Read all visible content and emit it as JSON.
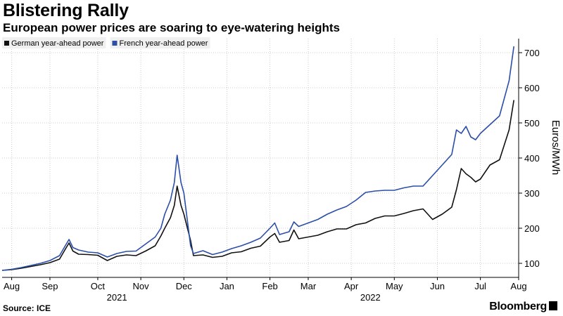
{
  "title": "Blistering Rally",
  "subtitle": "European power prices are soaring to eye-watering heights",
  "source": "Source: ICE",
  "brand": "Bloomberg",
  "colors": {
    "german": "#111111",
    "french": "#2b4ea8",
    "grid": "#cccccc"
  },
  "chart_data": {
    "type": "line",
    "ylabel": "Euros/MWh",
    "ylim": [
      60,
      740
    ],
    "yticks": [
      100,
      200,
      300,
      400,
      500,
      600,
      700
    ],
    "xlim": [
      0,
      54
    ],
    "xticks": [
      {
        "label": "Aug",
        "x": 1
      },
      {
        "label": "Sep",
        "x": 5
      },
      {
        "label": "Oct",
        "x": 10
      },
      {
        "label": "Nov",
        "x": 14.5
      },
      {
        "label": "Dec",
        "x": 19
      },
      {
        "label": "Jan",
        "x": 23.5
      },
      {
        "label": "Feb",
        "x": 28
      },
      {
        "label": "Mar",
        "x": 32
      },
      {
        "label": "Apr",
        "x": 36.5
      },
      {
        "label": "May",
        "x": 41
      },
      {
        "label": "Jun",
        "x": 45.5
      },
      {
        "label": "Jul",
        "x": 50
      },
      {
        "label": "Aug",
        "x": 54
      }
    ],
    "year_labels": [
      {
        "label": "2021",
        "x": 12
      },
      {
        "label": "2022",
        "x": 38.5
      }
    ],
    "legend_placement": "top-left",
    "series": [
      {
        "name": "German year-ahead power",
        "points": [
          [
            0,
            80
          ],
          [
            1,
            82
          ],
          [
            2,
            86
          ],
          [
            3,
            91
          ],
          [
            4,
            96
          ],
          [
            5,
            102
          ],
          [
            6,
            112
          ],
          [
            6.6,
            140
          ],
          [
            7,
            158
          ],
          [
            7.4,
            135
          ],
          [
            8,
            126
          ],
          [
            9,
            125
          ],
          [
            10,
            123
          ],
          [
            11,
            108
          ],
          [
            12,
            120
          ],
          [
            13,
            124
          ],
          [
            14,
            122
          ],
          [
            15,
            135
          ],
          [
            16,
            150
          ],
          [
            16.6,
            178
          ],
          [
            17,
            200
          ],
          [
            17.6,
            230
          ],
          [
            18,
            265
          ],
          [
            18.3,
            320
          ],
          [
            18.7,
            265
          ],
          [
            19,
            240
          ],
          [
            19.7,
            165
          ],
          [
            20,
            122
          ],
          [
            21,
            124
          ],
          [
            22,
            117
          ],
          [
            23,
            120
          ],
          [
            24,
            130
          ],
          [
            25,
            133
          ],
          [
            26,
            143
          ],
          [
            27,
            149
          ],
          [
            28,
            175
          ],
          [
            28.5,
            185
          ],
          [
            29,
            160
          ],
          [
            30,
            165
          ],
          [
            30.5,
            195
          ],
          [
            31,
            170
          ],
          [
            32,
            175
          ],
          [
            33,
            180
          ],
          [
            34,
            190
          ],
          [
            35,
            198
          ],
          [
            36,
            198
          ],
          [
            37,
            210
          ],
          [
            38,
            215
          ],
          [
            39,
            228
          ],
          [
            40,
            235
          ],
          [
            41,
            235
          ],
          [
            42,
            242
          ],
          [
            43,
            250
          ],
          [
            44,
            255
          ],
          [
            45,
            225
          ],
          [
            46,
            240
          ],
          [
            47,
            260
          ],
          [
            47.5,
            310
          ],
          [
            48,
            370
          ],
          [
            48.5,
            355
          ],
          [
            49,
            345
          ],
          [
            49.5,
            332
          ],
          [
            50,
            340
          ],
          [
            51,
            380
          ],
          [
            52,
            395
          ],
          [
            53,
            480
          ],
          [
            53.5,
            565
          ]
        ]
      },
      {
        "name": "French year-ahead power",
        "points": [
          [
            0,
            80
          ],
          [
            1,
            83
          ],
          [
            2,
            88
          ],
          [
            3,
            94
          ],
          [
            4,
            100
          ],
          [
            5,
            108
          ],
          [
            6,
            122
          ],
          [
            6.6,
            150
          ],
          [
            7,
            168
          ],
          [
            7.4,
            145
          ],
          [
            8,
            138
          ],
          [
            9,
            132
          ],
          [
            10,
            130
          ],
          [
            11,
            118
          ],
          [
            12,
            128
          ],
          [
            13,
            134
          ],
          [
            14,
            135
          ],
          [
            15,
            155
          ],
          [
            16,
            175
          ],
          [
            16.6,
            200
          ],
          [
            17,
            240
          ],
          [
            17.6,
            280
          ],
          [
            18,
            330
          ],
          [
            18.3,
            408
          ],
          [
            18.7,
            330
          ],
          [
            19,
            300
          ],
          [
            19.7,
            150
          ],
          [
            20,
            128
          ],
          [
            21,
            136
          ],
          [
            22,
            125
          ],
          [
            23,
            132
          ],
          [
            24,
            142
          ],
          [
            25,
            150
          ],
          [
            26,
            160
          ],
          [
            27,
            172
          ],
          [
            28,
            200
          ],
          [
            28.5,
            215
          ],
          [
            29,
            182
          ],
          [
            30,
            190
          ],
          [
            30.5,
            218
          ],
          [
            31,
            205
          ],
          [
            32,
            215
          ],
          [
            33,
            225
          ],
          [
            34,
            240
          ],
          [
            35,
            252
          ],
          [
            36,
            262
          ],
          [
            37,
            280
          ],
          [
            38,
            302
          ],
          [
            39,
            306
          ],
          [
            40,
            308
          ],
          [
            41,
            308
          ],
          [
            42,
            315
          ],
          [
            43,
            320
          ],
          [
            44,
            320
          ],
          [
            45,
            350
          ],
          [
            46,
            380
          ],
          [
            47,
            410
          ],
          [
            47.5,
            480
          ],
          [
            48,
            470
          ],
          [
            48.5,
            490
          ],
          [
            49,
            460
          ],
          [
            49.5,
            452
          ],
          [
            50,
            470
          ],
          [
            51,
            495
          ],
          [
            52,
            520
          ],
          [
            53,
            620
          ],
          [
            53.5,
            718
          ]
        ]
      }
    ]
  }
}
